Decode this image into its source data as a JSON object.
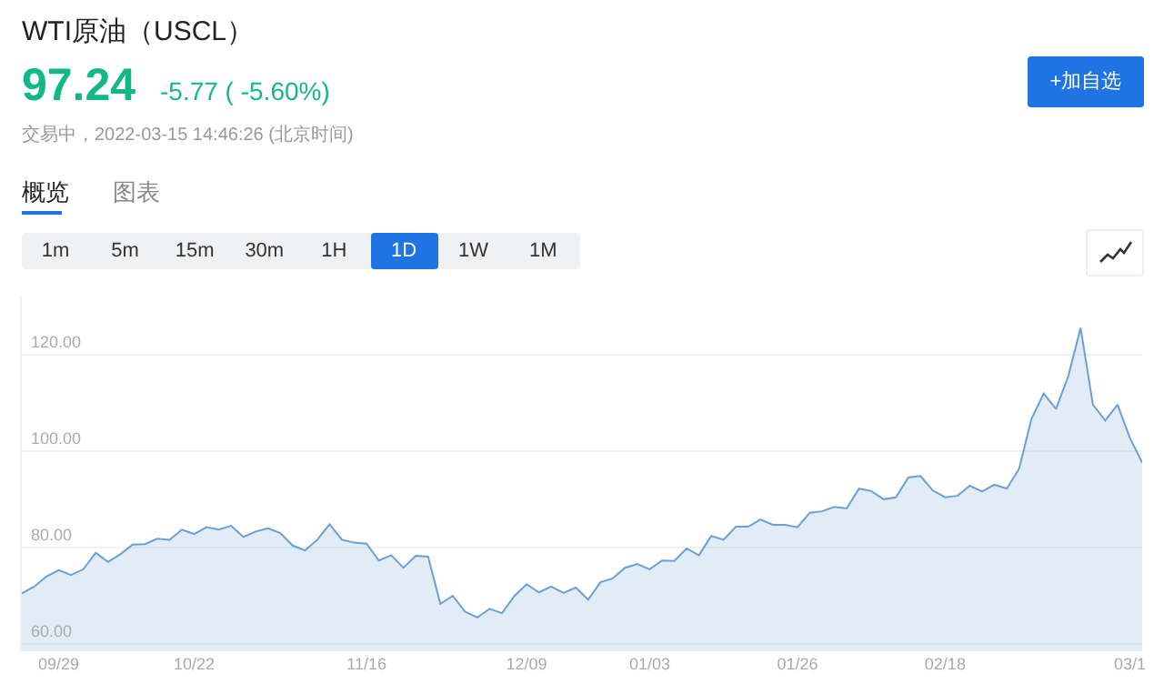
{
  "chart_data": {
    "type": "area",
    "title": "WTI原油（USCL）",
    "subtitle": "交易中，2022-03-15 14:46:26 (北京时间)",
    "annotations": [
      "97.24",
      "-5.77 ( -5.60%)",
      "+加自选",
      "概览",
      "图表",
      "1m",
      "5m",
      "15m",
      "30m",
      "1H",
      "1D",
      "1W",
      "1M"
    ],
    "color": "#6a9fd8",
    "categories": [
      null,
      null,
      null,
      "09/29",
      null,
      null,
      null,
      null,
      null,
      null,
      null,
      null,
      null,
      null,
      "10/22",
      null,
      null,
      null,
      null,
      null,
      null,
      null,
      null,
      null,
      null,
      null,
      null,
      null,
      "11/16",
      null,
      null,
      null,
      null,
      null,
      null,
      null,
      null,
      null,
      null,
      null,
      null,
      "12/09",
      null,
      null,
      null,
      null,
      null,
      null,
      null,
      null,
      null,
      "01/03",
      null,
      null,
      null,
      null,
      null,
      null,
      null,
      null,
      null,
      null,
      null,
      "01/26",
      null,
      null,
      null,
      null,
      null,
      null,
      null,
      null,
      null,
      null,
      null,
      "02/18",
      null,
      null,
      null,
      null,
      null,
      null,
      null,
      null,
      null,
      null,
      null,
      null,
      null,
      null,
      "03/1",
      null
    ],
    "values": [
      70.5,
      71.9,
      74.0,
      75.3,
      74.3,
      75.5,
      78.9,
      77.0,
      78.6,
      80.6,
      80.7,
      81.8,
      81.6,
      83.7,
      82.8,
      84.2,
      83.7,
      84.5,
      82.2,
      83.3,
      84.0,
      83.0,
      80.4,
      79.4,
      81.6,
      84.8,
      81.6,
      81.0,
      80.8,
      77.3,
      78.4,
      75.8,
      78.3,
      78.1,
      68.3,
      70.0,
      66.7,
      65.5,
      67.3,
      66.4,
      69.9,
      72.4,
      70.7,
      71.9,
      70.6,
      71.7,
      69.2,
      72.8,
      73.6,
      75.8,
      76.6,
      75.5,
      77.3,
      77.2,
      79.8,
      78.4,
      82.4,
      81.6,
      84.3,
      84.3,
      85.8,
      84.7,
      84.7,
      84.2,
      87.2,
      87.5,
      88.4,
      88.1,
      92.2,
      91.7,
      90.0,
      90.4,
      94.5,
      94.8,
      91.8,
      90.4,
      90.7,
      92.8,
      91.6,
      93.0,
      92.2,
      96.3,
      106.6,
      111.9,
      108.7,
      115.5,
      125.5,
      109.6,
      106.3,
      109.6,
      102.7,
      97.6
    ],
    "ylim": [
      58.5,
      132
    ],
    "yticks": [
      {
        "value": 60,
        "label": "60.00"
      },
      {
        "value": 80,
        "label": "80.00"
      },
      {
        "value": 100,
        "label": "100.00"
      },
      {
        "value": 120,
        "label": "120.00"
      }
    ],
    "grid": "y",
    "marker": "none",
    "line_style": "solid"
  }
}
